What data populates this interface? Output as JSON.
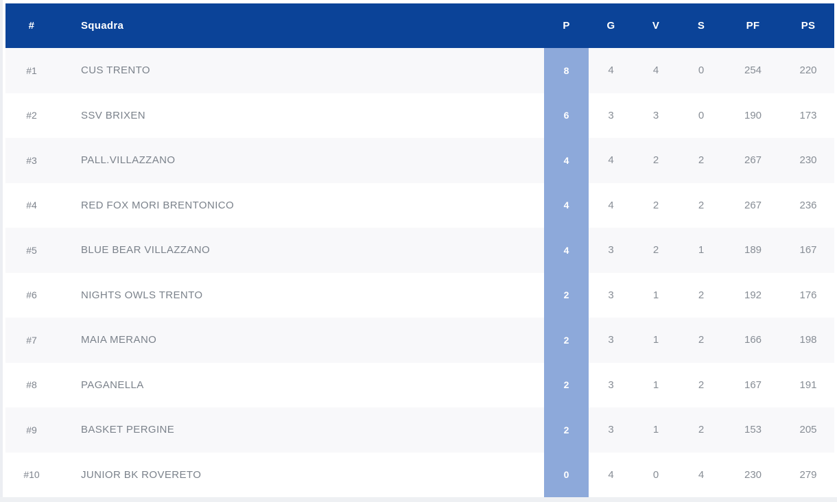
{
  "table": {
    "columns": [
      {
        "key": "rank",
        "label": "#"
      },
      {
        "key": "team",
        "label": "Squadra"
      },
      {
        "key": "p",
        "label": "P"
      },
      {
        "key": "g",
        "label": "G"
      },
      {
        "key": "v",
        "label": "V"
      },
      {
        "key": "s",
        "label": "S"
      },
      {
        "key": "pf",
        "label": "PF"
      },
      {
        "key": "ps",
        "label": "PS"
      }
    ],
    "rows": [
      {
        "rank": "#1",
        "team": "CUS TRENTO",
        "p": "8",
        "g": "4",
        "v": "4",
        "s": "0",
        "pf": "254",
        "ps": "220"
      },
      {
        "rank": "#2",
        "team": "SSV BRIXEN",
        "p": "6",
        "g": "3",
        "v": "3",
        "s": "0",
        "pf": "190",
        "ps": "173"
      },
      {
        "rank": "#3",
        "team": "PALL.VILLAZZANO",
        "p": "4",
        "g": "4",
        "v": "2",
        "s": "2",
        "pf": "267",
        "ps": "230"
      },
      {
        "rank": "#4",
        "team": "RED FOX MORI BRENTONICO",
        "p": "4",
        "g": "4",
        "v": "2",
        "s": "2",
        "pf": "267",
        "ps": "236"
      },
      {
        "rank": "#5",
        "team": "BLUE BEAR VILLAZZANO",
        "p": "4",
        "g": "3",
        "v": "2",
        "s": "1",
        "pf": "189",
        "ps": "167"
      },
      {
        "rank": "#6",
        "team": "NIGHTS OWLS TRENTO",
        "p": "2",
        "g": "3",
        "v": "1",
        "s": "2",
        "pf": "192",
        "ps": "176"
      },
      {
        "rank": "#7",
        "team": "MAIA MERANO",
        "p": "2",
        "g": "3",
        "v": "1",
        "s": "2",
        "pf": "166",
        "ps": "198"
      },
      {
        "rank": "#8",
        "team": "PAGANELLA",
        "p": "2",
        "g": "3",
        "v": "1",
        "s": "2",
        "pf": "167",
        "ps": "191"
      },
      {
        "rank": "#9",
        "team": "BASKET PERGINE",
        "p": "2",
        "g": "3",
        "v": "1",
        "s": "2",
        "pf": "153",
        "ps": "205"
      },
      {
        "rank": "#10",
        "team": "JUNIOR BK ROVERETO",
        "p": "0",
        "g": "4",
        "v": "0",
        "s": "4",
        "pf": "230",
        "ps": "279"
      }
    ]
  },
  "colors": {
    "header_bg": "#0b4398",
    "header_text": "#ffffff",
    "points_band_bg": "#8da9da",
    "points_band_text": "#ffffff",
    "row_alt_bg": "#f8f8fa",
    "row_bg": "#ffffff",
    "text_muted": "#7b828b",
    "page_strip_bg": "#eef0f3"
  }
}
